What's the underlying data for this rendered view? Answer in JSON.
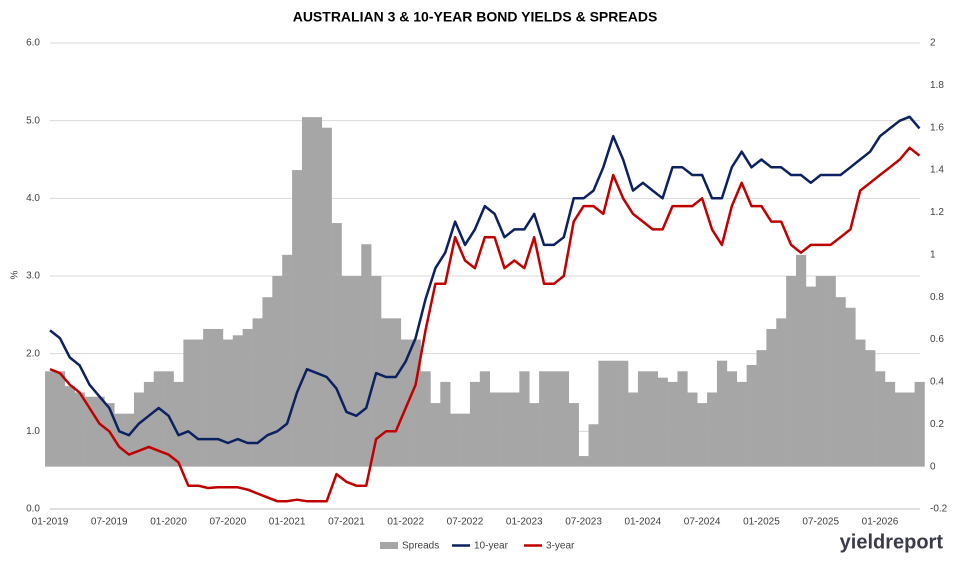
{
  "chart_data": {
    "type": "line",
    "title": "AUSTRALIAN 3 & 10-YEAR BOND YIELDS & SPREADS",
    "y_label": "%",
    "brand": "yieldreport",
    "x": [
      "01-2019",
      "02-2019",
      "03-2019",
      "04-2019",
      "05-2019",
      "06-2019",
      "07-2019",
      "08-2019",
      "09-2019",
      "10-2019",
      "11-2019",
      "12-2019",
      "01-2020",
      "02-2020",
      "03-2020",
      "04-2020",
      "05-2020",
      "06-2020",
      "07-2020",
      "08-2020",
      "09-2020",
      "10-2020",
      "11-2020",
      "12-2020",
      "01-2021",
      "02-2021",
      "03-2021",
      "04-2021",
      "05-2021",
      "06-2021",
      "07-2021",
      "08-2021",
      "09-2021",
      "10-2021",
      "11-2021",
      "12-2021",
      "01-2022",
      "02-2022",
      "03-2022",
      "04-2022",
      "05-2022",
      "06-2022",
      "07-2022",
      "08-2022",
      "09-2022",
      "10-2022",
      "11-2022",
      "12-2022",
      "01-2023",
      "02-2023",
      "03-2023",
      "04-2023",
      "05-2023",
      "06-2023",
      "07-2023",
      "08-2023",
      "09-2023",
      "10-2023",
      "11-2023",
      "12-2023",
      "01-2024",
      "02-2024",
      "03-2024",
      "04-2024",
      "05-2024",
      "06-2024",
      "07-2024",
      "08-2024",
      "09-2024",
      "10-2024",
      "11-2024",
      "12-2024",
      "01-2025",
      "02-2025",
      "03-2025",
      "04-2025",
      "05-2025",
      "06-2025",
      "07-2025",
      "08-2025",
      "09-2025",
      "10-2025",
      "11-2025",
      "12-2025",
      "01-2026",
      "02-2026",
      "03-2026",
      "04-2026",
      "05-2026"
    ],
    "xticks": [
      "01-2019",
      "07-2019",
      "01-2020",
      "07-2020",
      "01-2021",
      "07-2021",
      "01-2022",
      "07-2022",
      "01-2023",
      "07-2023",
      "01-2024",
      "07-2024",
      "01-2025",
      "07-2025",
      "01-2026"
    ],
    "series": [
      {
        "name": "Spreads",
        "type": "bar",
        "axis": "y2",
        "color": "#a6a6a6",
        "values": [
          0.45,
          0.45,
          0.38,
          0.35,
          0.33,
          0.33,
          0.3,
          0.25,
          0.25,
          0.35,
          0.4,
          0.45,
          0.45,
          0.4,
          0.6,
          0.6,
          0.65,
          0.65,
          0.6,
          0.62,
          0.65,
          0.7,
          0.8,
          0.9,
          1.0,
          1.4,
          1.65,
          1.65,
          1.6,
          1.15,
          0.9,
          0.9,
          1.05,
          0.9,
          0.7,
          0.7,
          0.6,
          0.6,
          0.45,
          0.3,
          0.4,
          0.25,
          0.25,
          0.4,
          0.45,
          0.35,
          0.35,
          0.35,
          0.45,
          0.3,
          0.45,
          0.45,
          0.45,
          0.3,
          0.05,
          0.2,
          0.5,
          0.5,
          0.5,
          0.35,
          0.45,
          0.45,
          0.42,
          0.4,
          0.45,
          0.35,
          0.3,
          0.35,
          0.5,
          0.45,
          0.4,
          0.48,
          0.55,
          0.65,
          0.7,
          0.9,
          1.0,
          0.85,
          0.9,
          0.9,
          0.8,
          0.75,
          0.6,
          0.55,
          0.45,
          0.4,
          0.35,
          0.35,
          0.4
        ]
      },
      {
        "name": "10-year",
        "type": "line",
        "color": "#0b2161",
        "values": [
          2.3,
          2.2,
          1.95,
          1.85,
          1.6,
          1.45,
          1.3,
          1.0,
          0.95,
          1.1,
          1.2,
          1.3,
          1.2,
          0.95,
          1.0,
          0.9,
          0.9,
          0.9,
          0.85,
          0.9,
          0.85,
          0.85,
          0.95,
          1.0,
          1.1,
          1.5,
          1.8,
          1.75,
          1.7,
          1.55,
          1.25,
          1.2,
          1.3,
          1.75,
          1.7,
          1.7,
          1.9,
          2.2,
          2.7,
          3.1,
          3.3,
          3.7,
          3.4,
          3.6,
          3.9,
          3.8,
          3.5,
          3.6,
          3.6,
          3.8,
          3.4,
          3.4,
          3.5,
          4.0,
          4.0,
          4.1,
          4.4,
          4.8,
          4.5,
          4.1,
          4.2,
          4.1,
          4.0,
          4.4,
          4.4,
          4.3,
          4.3,
          4.0,
          4.0,
          4.4,
          4.6,
          4.4,
          4.5,
          4.4,
          4.4,
          4.3,
          4.3,
          4.2,
          4.3,
          4.3,
          4.3,
          4.4,
          4.5,
          4.6,
          4.8,
          4.9,
          5.0,
          5.05,
          4.9
        ]
      },
      {
        "name": "3-year",
        "type": "line",
        "color": "#c00000",
        "values": [
          1.8,
          1.75,
          1.6,
          1.5,
          1.3,
          1.1,
          1.0,
          0.8,
          0.7,
          0.75,
          0.8,
          0.75,
          0.7,
          0.6,
          0.3,
          0.3,
          0.27,
          0.28,
          0.28,
          0.28,
          0.25,
          0.2,
          0.15,
          0.1,
          0.1,
          0.12,
          0.1,
          0.1,
          0.1,
          0.45,
          0.35,
          0.3,
          0.3,
          0.9,
          1.0,
          1.0,
          1.3,
          1.6,
          2.3,
          2.9,
          2.9,
          3.5,
          3.2,
          3.1,
          3.5,
          3.5,
          3.1,
          3.2,
          3.1,
          3.5,
          2.9,
          2.9,
          3.0,
          3.7,
          3.9,
          3.9,
          3.8,
          4.3,
          4.0,
          3.8,
          3.7,
          3.6,
          3.6,
          3.9,
          3.9,
          3.9,
          4.0,
          3.6,
          3.4,
          3.9,
          4.2,
          3.9,
          3.9,
          3.7,
          3.7,
          3.4,
          3.3,
          3.4,
          3.4,
          3.4,
          3.5,
          3.6,
          4.1,
          4.2,
          4.3,
          4.4,
          4.5,
          4.65,
          4.55
        ]
      }
    ],
    "ylim": [
      0,
      6
    ],
    "yticks": [
      {
        "value": 0,
        "label": "0.0"
      },
      {
        "value": 1,
        "label": "1.0"
      },
      {
        "value": 2,
        "label": "2.0"
      },
      {
        "value": 3,
        "label": "3.0"
      },
      {
        "value": 4,
        "label": "4.0"
      },
      {
        "value": 5,
        "label": "5.0"
      },
      {
        "value": 6,
        "label": "6.0"
      }
    ],
    "y2lim": [
      -0.2,
      2
    ],
    "y2ticks": [
      -0.2,
      0,
      0.2,
      0.4,
      0.6,
      0.8,
      1,
      1.2,
      1.4,
      1.6,
      1.8,
      2
    ],
    "grid": true,
    "legend": "bottom"
  }
}
